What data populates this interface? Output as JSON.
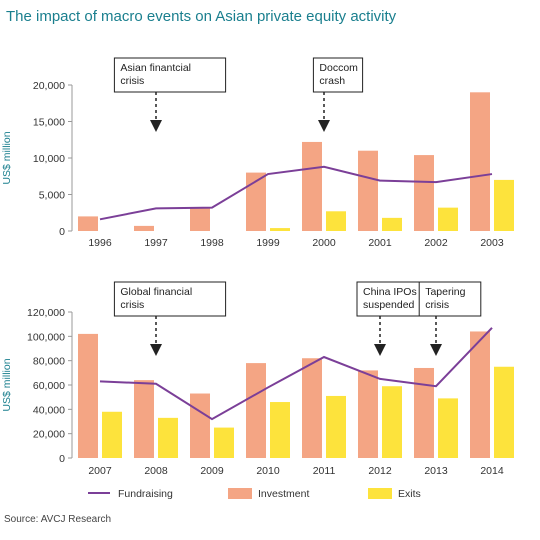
{
  "title": "The impact of macro events on Asian private equity activity",
  "source": "Source: AVCJ Research",
  "colors": {
    "fundraising": "#7b3f98",
    "investment": "#f4a584",
    "exits": "#fde33c",
    "title": "#1a7f8e"
  },
  "legend": [
    "Fundraising",
    "Investment",
    "Exits"
  ],
  "chart_data": [
    {
      "type": "bar",
      "ylabel": "US$ million",
      "ylim": [
        0,
        20000
      ],
      "yticks": [
        "0",
        "5,000",
        "10,000",
        "15,000",
        "20,000"
      ],
      "categories": [
        "1996",
        "1997",
        "1998",
        "1999",
        "2000",
        "2001",
        "2002",
        "2003"
      ],
      "series": [
        {
          "name": "Fundraising",
          "kind": "line",
          "values": [
            1600,
            3100,
            3200,
            7800,
            8800,
            6900,
            6700,
            7800
          ]
        },
        {
          "name": "Investment",
          "kind": "bar",
          "values": [
            2000,
            700,
            3200,
            8000,
            12200,
            11000,
            10400,
            19000
          ]
        },
        {
          "name": "Exits",
          "kind": "bar",
          "values": [
            0,
            0,
            0,
            400,
            2700,
            1800,
            3200,
            7000
          ]
        }
      ],
      "annotations": [
        {
          "text": [
            "Asian finantcial",
            "crisis"
          ],
          "category": "1997"
        },
        {
          "text": [
            "Doccom",
            "crash"
          ],
          "category": "2000"
        }
      ]
    },
    {
      "type": "bar",
      "ylabel": "US$ million",
      "ylim": [
        0,
        120000
      ],
      "yticks": [
        "0",
        "20,000",
        "40,000",
        "60,000",
        "80,000",
        "100,000",
        "120,000"
      ],
      "categories": [
        "2007",
        "2008",
        "2009",
        "2010",
        "2011",
        "2012",
        "2013",
        "2014"
      ],
      "series": [
        {
          "name": "Fundraising",
          "kind": "line",
          "values": [
            63000,
            61000,
            32000,
            58000,
            83000,
            65000,
            59000,
            107000
          ]
        },
        {
          "name": "Investment",
          "kind": "bar",
          "values": [
            102000,
            64000,
            53000,
            78000,
            82000,
            72000,
            74000,
            104000
          ]
        },
        {
          "name": "Exits",
          "kind": "bar",
          "values": [
            38000,
            33000,
            25000,
            46000,
            51000,
            59000,
            49000,
            75000
          ]
        }
      ],
      "annotations": [
        {
          "text": [
            "Global financial",
            "crisis"
          ],
          "category": "2008"
        },
        {
          "text": [
            "China IPOs",
            "suspended"
          ],
          "category": "2012"
        },
        {
          "text": [
            "Tapering",
            "crisis"
          ],
          "category": "2013"
        }
      ]
    }
  ]
}
